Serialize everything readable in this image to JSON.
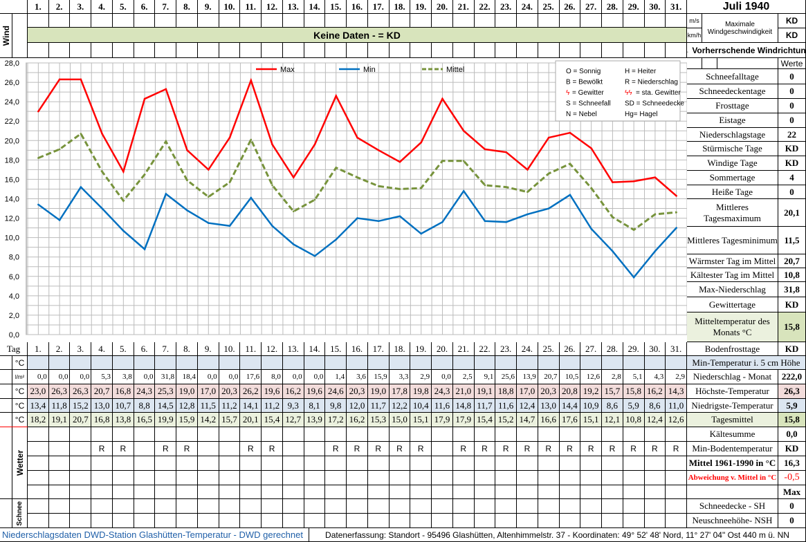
{
  "header": {
    "title": "Juli 1940",
    "wind_no_data": "Keine Daten -  = KD",
    "wind_label": "Wind",
    "ms": "m/s",
    "kmh": "km/h",
    "max_wind_label": "Maximale Windgeschwindigkeit",
    "max_wind_ms": "KD",
    "max_wind_kmh": "KD",
    "wind_direction": "← Vorherrschende Windrichtung",
    "werte": "Werte"
  },
  "days": [
    "1.",
    "2.",
    "3.",
    "4.",
    "5.",
    "6.",
    "7.",
    "8.",
    "9.",
    "10.",
    "11.",
    "12.",
    "13.",
    "14.",
    "15.",
    "16.",
    "17.",
    "18.",
    "19.",
    "20.",
    "21.",
    "22.",
    "23.",
    "24.",
    "25.",
    "26.",
    "27.",
    "28.",
    "29.",
    "30.",
    "31."
  ],
  "table": {
    "tag_label": "Tag",
    "unit_c": "°C",
    "unit_lm": "l/m²",
    "wetter_label": "Wetter",
    "schnee_label": "Schnee",
    "precip": [
      "0,0",
      "0,0",
      "0,0",
      "5,3",
      "3,8",
      "0,0",
      "31,8",
      "18,4",
      "0,0",
      "0,0",
      "17,6",
      "8,0",
      "0,0",
      "0,0",
      "1,4",
      "3,6",
      "15,9",
      "3,3",
      "2,9",
      "0,0",
      "2,5",
      "9,1",
      "25,6",
      "13,9",
      "20,7",
      "10,5",
      "12,6",
      "2,8",
      "5,1",
      "4,3",
      "2,9"
    ],
    "max": [
      "23,0",
      "26,3",
      "26,3",
      "20,7",
      "16,8",
      "24,3",
      "25,3",
      "19,0",
      "17,0",
      "20,3",
      "26,2",
      "19,6",
      "16,2",
      "19,6",
      "24,6",
      "20,3",
      "19,0",
      "17,8",
      "19,8",
      "24,3",
      "21,0",
      "19,1",
      "18,8",
      "17,0",
      "20,3",
      "20,8",
      "19,2",
      "15,7",
      "15,8",
      "16,2",
      "14,3"
    ],
    "min": [
      "13,4",
      "11,8",
      "15,2",
      "13,0",
      "10,7",
      "8,8",
      "14,5",
      "12,8",
      "11,5",
      "11,2",
      "14,1",
      "11,2",
      "9,3",
      "8,1",
      "9,8",
      "12,0",
      "11,7",
      "12,2",
      "10,4",
      "11,6",
      "14,8",
      "11,7",
      "11,6",
      "12,4",
      "13,0",
      "14,4",
      "10,9",
      "8,6",
      "5,9",
      "8,6",
      "11,0"
    ],
    "mean": [
      "18,2",
      "19,1",
      "20,7",
      "16,8",
      "13,8",
      "16,5",
      "19,9",
      "15,9",
      "14,2",
      "15,7",
      "20,1",
      "15,4",
      "12,7",
      "13,9",
      "17,2",
      "16,2",
      "15,3",
      "15,0",
      "15,1",
      "17,9",
      "17,9",
      "15,4",
      "15,2",
      "14,7",
      "16,6",
      "17,6",
      "15,1",
      "12,1",
      "10,8",
      "12,4",
      "12,6"
    ],
    "weather": [
      "",
      "",
      "",
      "R",
      "R",
      "",
      "R",
      "R",
      "",
      "",
      "R",
      "R",
      "",
      "",
      "R",
      "R",
      "R",
      "R",
      "R",
      "",
      "R",
      "R",
      "R",
      "R",
      "R",
      "R",
      "R",
      "R",
      "R",
      "R",
      "R"
    ]
  },
  "stats": [
    {
      "label": "Schneefalltage",
      "value": "0"
    },
    {
      "label": "Schneedeckentage",
      "value": "0"
    },
    {
      "label": "Frosttage",
      "value": "0"
    },
    {
      "label": "Eistage",
      "value": "0"
    },
    {
      "label": "Niederschlagstage",
      "value": "22"
    },
    {
      "label": "Stürmische Tage",
      "value": "KD"
    },
    {
      "label": "Windige Tage",
      "value": "KD"
    },
    {
      "label": "Sommertage",
      "value": "4"
    },
    {
      "label": "Heiße Tage",
      "value": "0"
    },
    {
      "label": "Mittleres Tagesmaximum",
      "value": "20,1"
    },
    {
      "label": "Mittleres Tagesminimum",
      "value": "11,5"
    },
    {
      "label": "Wärmster Tag im Mittel",
      "value": "20,7"
    },
    {
      "label": "Kältester Tag im Mittel",
      "value": "10,8"
    },
    {
      "label": "Max-Niederschlag",
      "value": "31,8"
    },
    {
      "label": "Gewittertage",
      "value": "KD"
    },
    {
      "label": "Mitteltemperatur des Monats °C",
      "value": "15,8"
    },
    {
      "label": "Bodenfrosttage",
      "value": "KD"
    },
    {
      "label": "Min-Temperatur i. 5 cm Höhe",
      "value": ""
    },
    {
      "label": "Niederschlag - Monat",
      "value": "222,0"
    },
    {
      "label": "Höchste-Temperatur",
      "value": "26,3"
    },
    {
      "label": "Niedrigste-Temperatur",
      "value": "5,9"
    },
    {
      "label": "Tagesmittel",
      "value": "15,8"
    },
    {
      "label": "Kältesumme",
      "value": "0,0"
    },
    {
      "label": "Min-Bodentemperatur",
      "value": "KD"
    },
    {
      "label": "Mittel 1961-1990 in °C",
      "value": "16,3"
    },
    {
      "label": "Abweichung v. Mittel in °C",
      "value": "-0,5"
    },
    {
      "label": "",
      "value": "Max"
    },
    {
      "label": "Schneedecke -    SH",
      "value": "0"
    },
    {
      "label": "Neuschneehöhe- NSH",
      "value": "0"
    }
  ],
  "legend_codes": [
    "O = Sonnig",
    "H = Heiter",
    "B = Bewölkt",
    "R = Niederschlag",
    "= Gewitter",
    "= sta. Gewitter",
    "S = Schneefall",
    "SD = Schneedecke",
    "N = Nebel",
    "Hg=  Hagel"
  ],
  "footer": {
    "left": "Niederschlagsdaten DWD-Station Glashütten-Temperatur -  DWD gerechnet",
    "right": "Datenerfassung:  Standort -  95496  Glashütten, Altenhimmelstr. 37 -  Koordinaten:  49° 52' 48' Nord,   11° 27' 04\" Ost   440 m ü. NN"
  },
  "colors": {
    "max": "#ff0000",
    "min": "#0070c0",
    "mean": "#77933c",
    "no_data_band": "#d8e4bc",
    "abweichung": "#ff0000"
  },
  "chart_data": {
    "type": "line",
    "x": [
      1,
      2,
      3,
      4,
      5,
      6,
      7,
      8,
      9,
      10,
      11,
      12,
      13,
      14,
      15,
      16,
      17,
      18,
      19,
      20,
      21,
      22,
      23,
      24,
      25,
      26,
      27,
      28,
      29,
      30,
      31
    ],
    "ylim": [
      0,
      28
    ],
    "yticks": [
      "0,0",
      "2,0",
      "4,0",
      "6,0",
      "8,0",
      "10,0",
      "12,0",
      "14,0",
      "16,0",
      "18,0",
      "20,0",
      "22,0",
      "24,0",
      "26,0",
      "28,0"
    ],
    "grid": true,
    "legend": "top",
    "series": [
      {
        "name": "Max",
        "color": "#ff0000",
        "dash": false,
        "values": [
          23.0,
          26.3,
          26.3,
          20.7,
          16.8,
          24.3,
          25.3,
          19.0,
          17.0,
          20.3,
          26.2,
          19.6,
          16.2,
          19.6,
          24.6,
          20.3,
          19.0,
          17.8,
          19.8,
          24.3,
          21.0,
          19.1,
          18.8,
          17.0,
          20.3,
          20.8,
          19.2,
          15.7,
          15.8,
          16.2,
          14.3
        ]
      },
      {
        "name": "Min",
        "color": "#0070c0",
        "dash": false,
        "values": [
          13.4,
          11.8,
          15.2,
          13.0,
          10.7,
          8.8,
          14.5,
          12.8,
          11.5,
          11.2,
          14.1,
          11.2,
          9.3,
          8.1,
          9.8,
          12.0,
          11.7,
          12.2,
          10.4,
          11.6,
          14.8,
          11.7,
          11.6,
          12.4,
          13.0,
          14.4,
          10.9,
          8.6,
          5.9,
          8.6,
          11.0
        ]
      },
      {
        "name": "Mittel",
        "color": "#77933c",
        "dash": true,
        "values": [
          18.2,
          19.1,
          20.7,
          16.8,
          13.8,
          16.5,
          19.9,
          15.9,
          14.2,
          15.7,
          20.1,
          15.4,
          12.7,
          13.9,
          17.2,
          16.2,
          15.3,
          15.0,
          15.1,
          17.9,
          17.9,
          15.4,
          15.2,
          14.7,
          16.6,
          17.6,
          15.1,
          12.1,
          10.8,
          12.4,
          12.6
        ]
      }
    ]
  }
}
